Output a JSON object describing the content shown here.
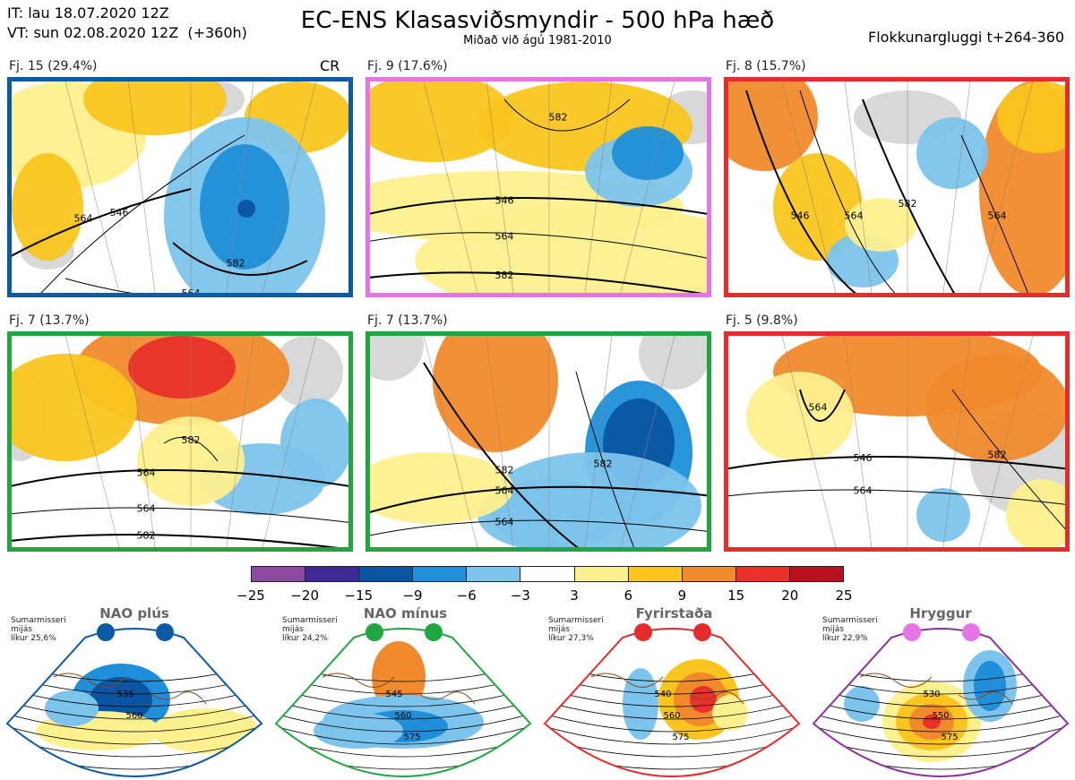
{
  "header": {
    "it_line": "IT: lau 18.07.2020 12Z",
    "vt_line": "VT: sun 02.08.2020 12Z  (+360h)",
    "title": "EC-ENS Klasasviðsmyndir - 500 hPa hæð",
    "subtitle": "Miðað við ágú 1981-2010",
    "window": "Flokkunargluggi t+264-360"
  },
  "maps": [
    {
      "label": "Fj. 15 (29.4%)",
      "tag": "CR",
      "border": "#0b5aa6",
      "contours": [
        "564",
        "546",
        "582",
        "564"
      ]
    },
    {
      "label": "Fj. 9 (17.6%)",
      "tag": "",
      "border": "#e774e7",
      "contours": [
        "546",
        "564",
        "582",
        "582"
      ]
    },
    {
      "label": "Fj. 8 (15.7%)",
      "tag": "",
      "border": "#e52b2b",
      "contours": [
        "546",
        "564",
        "582",
        "564"
      ]
    },
    {
      "label": "Fj. 7 (13.7%)",
      "tag": "",
      "border": "#1fa640",
      "contours": [
        "564",
        "564",
        "582",
        "582"
      ]
    },
    {
      "label": "Fj. 7 (13.7%)",
      "tag": "",
      "border": "#1fa640",
      "contours": [
        "564",
        "564",
        "582",
        "582"
      ]
    },
    {
      "label": "Fj. 5 (9.8%)",
      "tag": "",
      "border": "#e52b2b",
      "contours": [
        "546",
        "564",
        "564",
        "582"
      ]
    }
  ],
  "colorbar": {
    "colors": [
      "#8a4aa0",
      "#3e2a94",
      "#0a55a2",
      "#1e8fd8",
      "#7cc4ec",
      "#ffffff",
      "#fdf08e",
      "#f9c51e",
      "#f08a2c",
      "#e8312a",
      "#b5121b"
    ],
    "ticks": [
      "−25",
      "−20",
      "−15",
      "−9",
      "−6",
      "−3",
      "3",
      "6",
      "9",
      "15",
      "20",
      "25"
    ]
  },
  "regimes": [
    {
      "title": "NAO plús",
      "note": "Sumarmisseri\nmijás\nlíkur 25,6%",
      "border": "#0b5aa6",
      "dot_color": "#0b5aa6",
      "contours": [
        "535",
        "560"
      ]
    },
    {
      "title": "NAO mínus",
      "note": "Sumarmisseri\nmijás\nlíkur 24,2%",
      "border": "#1fa640",
      "dot_color": "#1fa640",
      "contours": [
        "545",
        "560",
        "575"
      ]
    },
    {
      "title": "Fyrirstaða",
      "note": "Sumarmisseri\nmijás\nlíkur 27,3%",
      "border": "#e52b2b",
      "dot_color": "#e52b2b",
      "contours": [
        "540",
        "560",
        "575"
      ]
    },
    {
      "title": "Hryggur",
      "note": "Sumarmisseri\nmijás\nlíkur 22,9%",
      "border": "#8e2f9e",
      "dot_color": "#e774e7",
      "contours": [
        "530",
        "550",
        "575"
      ]
    }
  ]
}
